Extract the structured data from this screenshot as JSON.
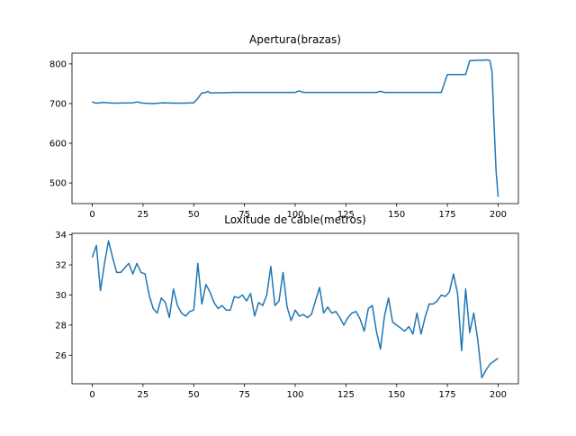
{
  "chart_data": [
    {
      "type": "line",
      "title": "Apertura(brazas)",
      "color": "#1f77b4",
      "x": [
        0,
        1,
        3,
        5,
        10,
        20,
        22,
        25,
        30,
        35,
        40,
        45,
        50,
        52,
        54,
        56,
        57,
        58,
        70,
        100,
        102,
        104,
        140,
        142,
        144,
        172,
        174,
        175,
        184,
        185,
        186,
        195,
        196,
        197,
        198,
        199,
        200
      ],
      "values": [
        705,
        702,
        701,
        703,
        701,
        702,
        704,
        701,
        700,
        702,
        701,
        701,
        702,
        713,
        727,
        728,
        731,
        727,
        728,
        728,
        732,
        728,
        728,
        731,
        728,
        728,
        758,
        773,
        773,
        790,
        808,
        810,
        808,
        780,
        650,
        530,
        465
      ],
      "xlim": [
        -10,
        210
      ],
      "ylim": [
        448,
        827
      ],
      "xticks": [
        0,
        25,
        50,
        75,
        100,
        125,
        150,
        175,
        200
      ],
      "yticks": [
        500,
        600,
        700,
        800
      ]
    },
    {
      "type": "line",
      "title": "Loxitude de cable(metros)",
      "color": "#1f77b4",
      "x": [
        0,
        2,
        4,
        6,
        8,
        10,
        12,
        14,
        16,
        18,
        20,
        22,
        24,
        26,
        28,
        30,
        32,
        34,
        36,
        38,
        40,
        42,
        44,
        46,
        48,
        50,
        52,
        54,
        56,
        58,
        60,
        62,
        64,
        66,
        68,
        70,
        72,
        74,
        76,
        78,
        80,
        82,
        84,
        86,
        88,
        90,
        92,
        94,
        96,
        98,
        100,
        102,
        104,
        106,
        108,
        110,
        112,
        114,
        116,
        118,
        120,
        122,
        124,
        126,
        128,
        130,
        132,
        134,
        136,
        138,
        140,
        142,
        144,
        146,
        148,
        150,
        152,
        154,
        156,
        158,
        160,
        162,
        164,
        166,
        168,
        170,
        172,
        174,
        176,
        178,
        180,
        182,
        184,
        186,
        188,
        190,
        192,
        194,
        196,
        198,
        200
      ],
      "values": [
        32.5,
        33.3,
        30.3,
        32.1,
        33.6,
        32.5,
        31.5,
        31.5,
        31.8,
        32.1,
        31.4,
        32.1,
        31.5,
        31.4,
        30.0,
        29.1,
        28.8,
        29.8,
        29.5,
        28.5,
        30.4,
        29.3,
        28.8,
        28.6,
        28.9,
        29.0,
        32.1,
        29.4,
        30.7,
        30.2,
        29.5,
        29.1,
        29.3,
        29.0,
        29.0,
        29.9,
        29.8,
        30.0,
        29.6,
        30.1,
        28.6,
        29.5,
        29.3,
        30.0,
        31.9,
        29.3,
        29.6,
        31.5,
        29.2,
        28.3,
        29.0,
        28.6,
        28.7,
        28.5,
        28.7,
        29.6,
        30.5,
        28.8,
        29.2,
        28.8,
        28.9,
        28.5,
        28.0,
        28.5,
        28.8,
        28.9,
        28.4,
        27.6,
        29.1,
        29.3,
        27.6,
        26.4,
        28.6,
        29.8,
        28.2,
        28.0,
        27.8,
        27.6,
        27.9,
        27.4,
        28.8,
        27.4,
        28.5,
        29.4,
        29.4,
        29.6,
        30.0,
        29.9,
        30.2,
        31.4,
        30.1,
        26.3,
        30.4,
        27.5,
        28.8,
        27.0,
        24.5,
        25.0,
        25.4,
        25.6,
        25.8
      ],
      "xlim": [
        -10,
        210
      ],
      "ylim": [
        24.1,
        34.1
      ],
      "xticks": [
        0,
        25,
        50,
        75,
        100,
        125,
        150,
        175,
        200
      ],
      "yticks": [
        26,
        28,
        30,
        32,
        34
      ]
    }
  ]
}
